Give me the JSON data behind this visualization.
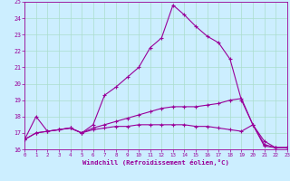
{
  "xlabel": "Windchill (Refroidissement éolien,°C)",
  "background_color": "#cceeff",
  "line_color": "#990099",
  "grid_color": "#aaddcc",
  "xlim": [
    0,
    23
  ],
  "ylim": [
    16,
    25
  ],
  "xticks": [
    0,
    1,
    2,
    3,
    4,
    5,
    6,
    7,
    8,
    9,
    10,
    11,
    12,
    13,
    14,
    15,
    16,
    17,
    18,
    19,
    20,
    21,
    22,
    23
  ],
  "yticks": [
    16,
    17,
    18,
    19,
    20,
    21,
    22,
    23,
    24,
    25
  ],
  "lines": [
    {
      "x": [
        0,
        1,
        2,
        3,
        4,
        5,
        6,
        7,
        8,
        9,
        10,
        11,
        12,
        13,
        14,
        15,
        16,
        17,
        18,
        19,
        20,
        21,
        22,
        23
      ],
      "y": [
        16.6,
        18.0,
        17.1,
        17.2,
        17.3,
        17.0,
        17.5,
        19.3,
        19.8,
        20.4,
        21.0,
        22.2,
        22.8,
        24.8,
        24.2,
        23.5,
        22.9,
        22.5,
        21.5,
        19.0,
        17.5,
        16.2,
        16.1,
        16.1
      ]
    },
    {
      "x": [
        0,
        1,
        2,
        3,
        4,
        5,
        6,
        7,
        8,
        9,
        10,
        11,
        12,
        13,
        14,
        15,
        16,
        17,
        18,
        19,
        20,
        21,
        22,
        23
      ],
      "y": [
        16.6,
        17.0,
        17.1,
        17.2,
        17.3,
        17.0,
        17.3,
        17.5,
        17.7,
        17.9,
        18.1,
        18.3,
        18.5,
        18.6,
        18.6,
        18.6,
        18.7,
        18.8,
        19.0,
        19.1,
        17.5,
        16.3,
        16.1,
        16.1
      ]
    },
    {
      "x": [
        0,
        1,
        2,
        3,
        4,
        5,
        6,
        7,
        8,
        9,
        10,
        11,
        12,
        13,
        14,
        15,
        16,
        17,
        18,
        19,
        20,
        21,
        22,
        23
      ],
      "y": [
        16.6,
        17.0,
        17.1,
        17.2,
        17.3,
        17.0,
        17.2,
        17.3,
        17.4,
        17.4,
        17.5,
        17.5,
        17.5,
        17.5,
        17.5,
        17.4,
        17.4,
        17.3,
        17.2,
        17.1,
        17.5,
        16.5,
        16.1,
        16.1
      ]
    }
  ]
}
